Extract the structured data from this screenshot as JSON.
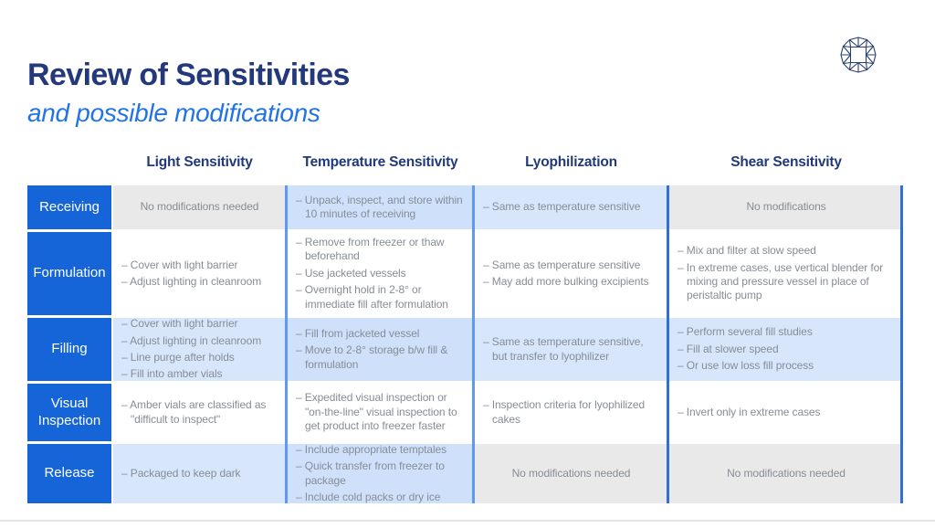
{
  "title": "Review of Sensitivities",
  "subtitle": "and possible modifications",
  "logo": {
    "name": "diamond-gem-logo"
  },
  "bullet_prefix": "– ",
  "colors": {
    "title_navy": "#24397B",
    "subtitle_blue": "#2273E6",
    "column_header_navy": "#21397A",
    "row_header_blue": "#1565D9",
    "cell_light_blue": "#D8E6FC",
    "cell_light_blue_deep": "#CFE1FA",
    "cell_gray": "#E9E9E9",
    "cell_text_gray": "#868D97",
    "divider_blue_light": "#5F99F2",
    "divider_blue_dark": "#2F6FD6"
  },
  "table": {
    "columns": [
      "Light Sensitivity",
      "Temperature Sensitivity",
      "Lyophilization",
      "Shear Sensitivity"
    ],
    "rows": [
      {
        "header": "Receiving",
        "cells": [
          {
            "style": "gray",
            "text": "No modifications needed"
          },
          {
            "style": "blue",
            "bullets": [
              "Unpack, inspect, and store within 10 minutes of receiving"
            ]
          },
          {
            "style": "blue",
            "bullets": [
              "Same as temperature sensitive"
            ]
          },
          {
            "style": "gray",
            "text": "No modifications"
          }
        ]
      },
      {
        "header": "Formulation",
        "cells": [
          {
            "style": "white",
            "bullets": [
              "Cover with light barrier",
              "Adjust lighting in cleanroom"
            ]
          },
          {
            "style": "white",
            "bullets": [
              "Remove from freezer or thaw beforehand",
              "Use jacketed vessels",
              "Overnight hold in 2-8° or immediate fill after formulation"
            ]
          },
          {
            "style": "white",
            "bullets": [
              "Same as temperature sensitive",
              "May add more bulking excipients"
            ]
          },
          {
            "style": "white",
            "bullets": [
              "Mix and filter at slow speed",
              "In extreme cases, use vertical blender for mixing and pressure vessel in place of peristaltic pump"
            ]
          }
        ]
      },
      {
        "header": "Filling",
        "cells": [
          {
            "style": "blue",
            "bullets": [
              "Cover with light barrier",
              "Adjust lighting in cleanroom",
              "Line purge after holds",
              "Fill into amber vials"
            ]
          },
          {
            "style": "blue",
            "bullets": [
              "Fill from jacketed vessel",
              "Move to 2-8° storage b/w fill & formulation"
            ]
          },
          {
            "style": "blue",
            "bullets": [
              "Same as temperature sensitive, but transfer to lyophilizer"
            ]
          },
          {
            "style": "blue",
            "bullets": [
              "Perform several fill studies",
              "Fill at slower speed",
              "Or use low loss fill process"
            ]
          }
        ]
      },
      {
        "header": "Visual Inspection",
        "cells": [
          {
            "style": "white",
            "bullets": [
              "Amber vials are classified as \"difficult to inspect\""
            ]
          },
          {
            "style": "white",
            "bullets": [
              "Expedited visual inspection or \"on-the-line\" visual inspection to get product into freezer faster"
            ]
          },
          {
            "style": "white",
            "bullets": [
              "Inspection criteria for lyophilized cakes"
            ]
          },
          {
            "style": "white",
            "bullets": [
              "Invert only in extreme cases"
            ]
          }
        ]
      },
      {
        "header": "Release",
        "cells": [
          {
            "style": "blue",
            "bullets": [
              "Packaged to keep dark"
            ]
          },
          {
            "style": "blue",
            "bullets": [
              "Include appropriate temptales",
              "Quick transfer from freezer to package",
              "Include cold packs or dry ice"
            ]
          },
          {
            "style": "gray",
            "text": "No modifications needed"
          },
          {
            "style": "gray",
            "text": "No modifications needed"
          }
        ]
      }
    ]
  }
}
